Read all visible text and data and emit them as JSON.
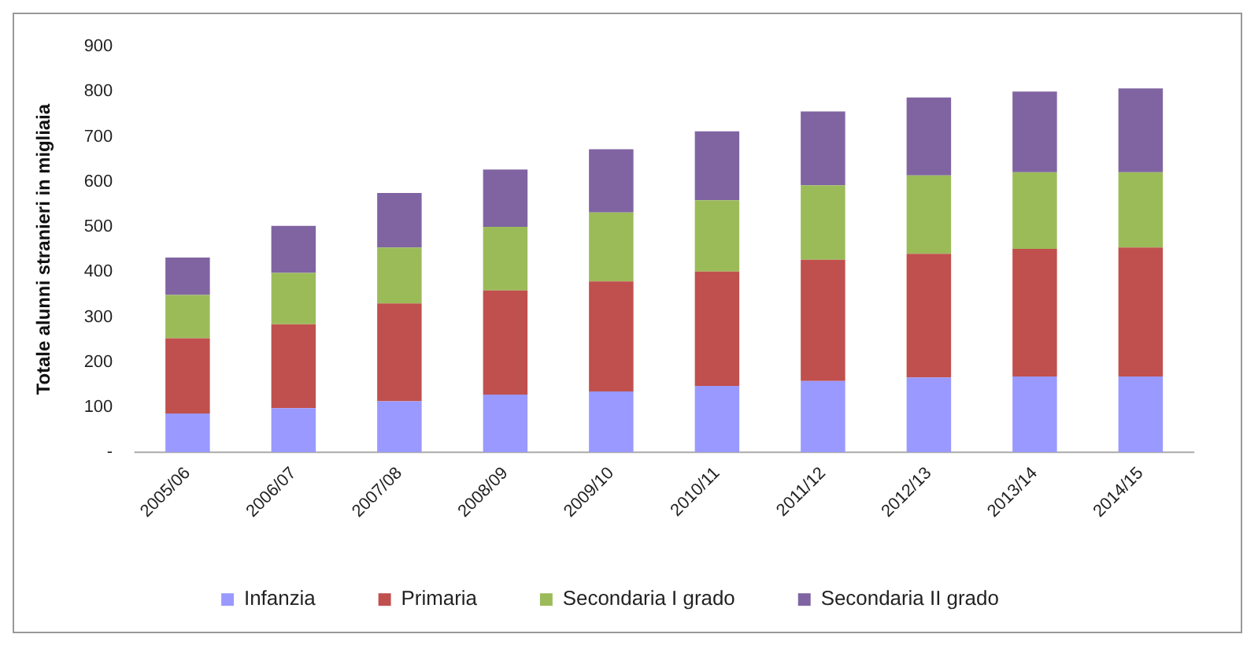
{
  "chart_data": {
    "type": "bar",
    "stacked": true,
    "ylabel": "Totale alunni stranieri in migliaia",
    "categories": [
      "2005/06",
      "2006/07",
      "2007/08",
      "2008/09",
      "2009/10",
      "2010/11",
      "2011/12",
      "2012/13",
      "2013/14",
      "2014/15"
    ],
    "series": [
      {
        "name": "Infanzia",
        "color": "#9999ff",
        "values": [
          86,
          98,
          113,
          128,
          135,
          147,
          158,
          166,
          168,
          168
        ]
      },
      {
        "name": "Primaria",
        "color": "#c0504d",
        "values": [
          167,
          186,
          217,
          231,
          244,
          254,
          269,
          274,
          283,
          286
        ]
      },
      {
        "name": "Secondaria I grado",
        "color": "#9bbb59",
        "values": [
          96,
          114,
          124,
          141,
          153,
          158,
          165,
          174,
          170,
          167
        ]
      },
      {
        "name": "Secondaria II grado",
        "color": "#8064a2",
        "values": [
          83,
          104,
          121,
          127,
          140,
          153,
          164,
          173,
          179,
          186
        ]
      }
    ],
    "ylim": [
      0,
      900
    ],
    "yticks": [
      {
        "value": 0,
        "label": "-"
      },
      100,
      200,
      300,
      400,
      500,
      600,
      700,
      800,
      900
    ],
    "grid": false,
    "legend": "bottom"
  }
}
